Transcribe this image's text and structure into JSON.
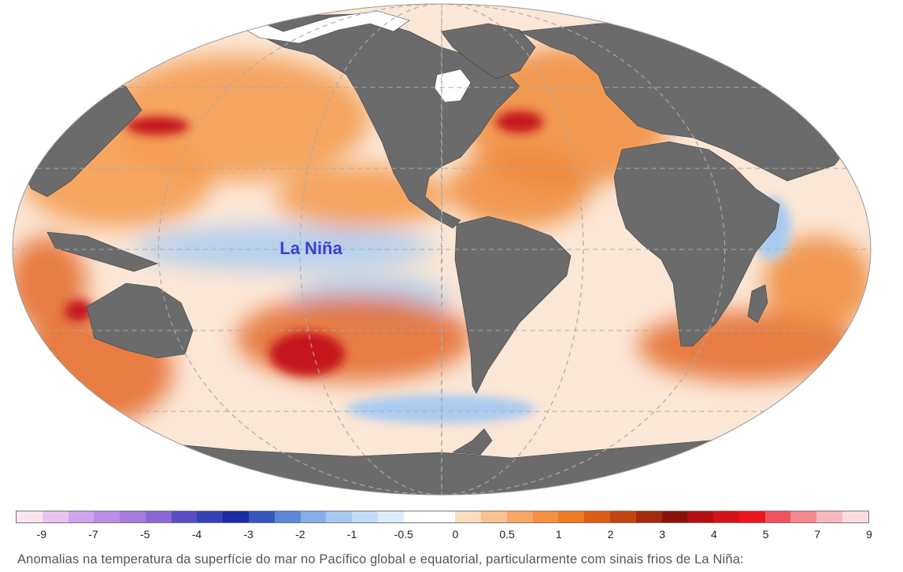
{
  "map": {
    "annotation": "La Niña",
    "annotation_color": "#3a3fd0",
    "ocean_base_color": "#fbe7d6",
    "land_color": "#6b6b6b",
    "ice_color": "#ffffff",
    "grid_color": "#aaaaaa",
    "map_labels": [],
    "anomaly_regions": [
      {
        "name": "north-pacific",
        "level": "warm",
        "color": "#f39a4c"
      },
      {
        "name": "equatorial-pacific",
        "level": "cool",
        "color": "#a9cbf0"
      },
      {
        "name": "south-pacific-hotspot",
        "level": "very-warm",
        "color": "#c4121a"
      },
      {
        "name": "north-atlantic",
        "level": "warm",
        "color": "#ef8a3a"
      },
      {
        "name": "southern-ocean",
        "level": "mixed",
        "color": "#e46a2a"
      }
    ]
  },
  "legend": {
    "colors": [
      "#fbe5f0",
      "#e6c4ef",
      "#cfa6ec",
      "#ba8ee6",
      "#a47ae0",
      "#8a67d6",
      "#5b4cc4",
      "#3540b6",
      "#1c2aa3",
      "#3856c2",
      "#5d86d9",
      "#85aee8",
      "#a6c9f1",
      "#c2dbf6",
      "#dcebfa",
      "#ffffff",
      "#ffffff",
      "#fcdcbe",
      "#fbc08f",
      "#f9a765",
      "#f68f3f",
      "#ef7a22",
      "#df5d12",
      "#c44410",
      "#a32a0c",
      "#8a1209",
      "#b50f14",
      "#d8121a",
      "#f0141e",
      "#f2545e",
      "#f4878f",
      "#f6b7bd",
      "#f9dcde"
    ],
    "ticks": [
      "-9",
      "-7",
      "-5",
      "-4",
      "-3",
      "-2",
      "-1",
      "-0.5",
      "0",
      "0.5",
      "1",
      "2",
      "3",
      "4",
      "5",
      "7",
      "9"
    ]
  },
  "caption": "Anomalias na temperatura da superfície do mar no Pacífico global e equatorial, particularmente com sinais frios de La Niña:"
}
